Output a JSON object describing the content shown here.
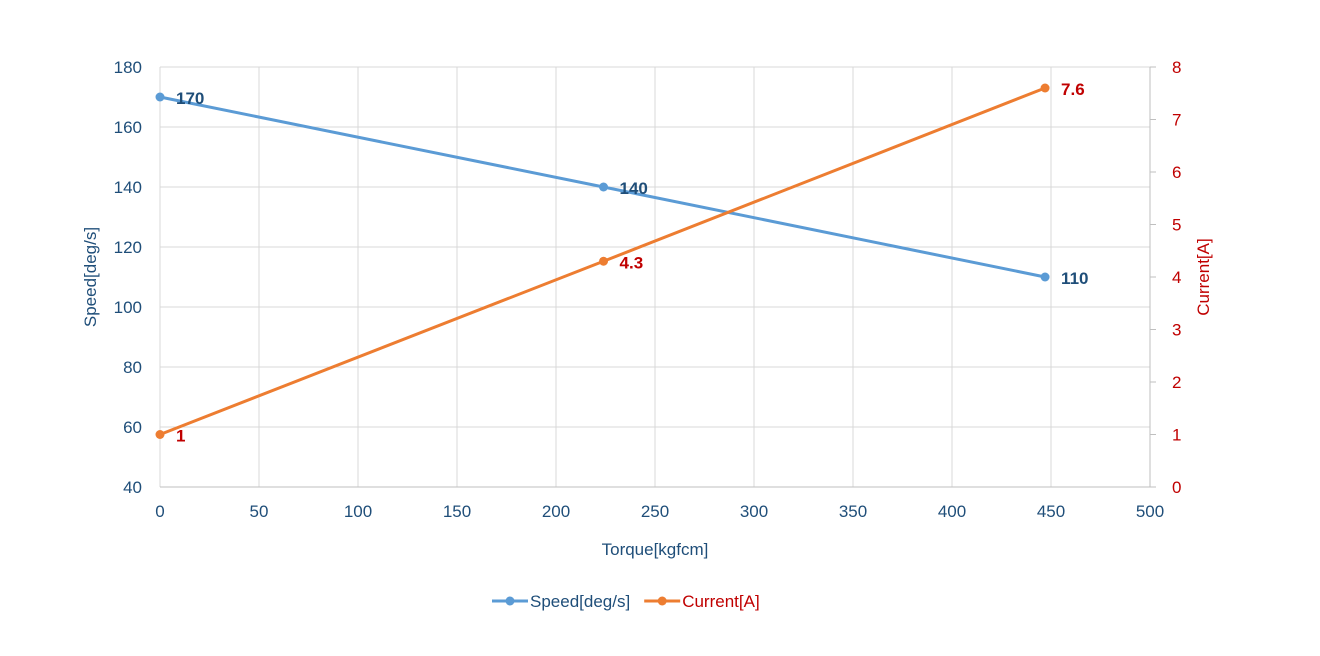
{
  "chart_data": {
    "type": "line",
    "title": "",
    "xlabel": "Torque[kgfcm]",
    "ylabel": "Speed[deg/s]",
    "y2label": "Current[A]",
    "xlim": [
      0,
      500
    ],
    "xticks": [
      0,
      50,
      100,
      150,
      200,
      250,
      300,
      350,
      400,
      450,
      500
    ],
    "ylim": [
      40,
      180
    ],
    "yticks": [
      40,
      60,
      80,
      100,
      120,
      140,
      160,
      180
    ],
    "y2lim": [
      0,
      8
    ],
    "y2ticks": [
      0,
      1,
      2,
      3,
      4,
      5,
      6,
      7,
      8
    ],
    "grid": true,
    "legend_position": "bottom",
    "series": [
      {
        "name": "Speed[deg/s]",
        "axis": "left",
        "color": "#5B9BD5",
        "label_color": "#1F4E79",
        "x": [
          0,
          224,
          447
        ],
        "values": [
          170,
          140,
          110
        ],
        "labels": [
          "170",
          "140",
          "110"
        ]
      },
      {
        "name": "Current[A]",
        "axis": "right",
        "color": "#ED7D31",
        "label_color": "#C00000",
        "x": [
          0,
          224,
          447
        ],
        "values": [
          1,
          4.3,
          7.6
        ],
        "labels": [
          "1",
          "4.3",
          "7.6"
        ]
      }
    ],
    "colors": {
      "left_axis": "#1F4E79",
      "right_axis": "#C00000",
      "grid": "#D9D9D9"
    }
  }
}
